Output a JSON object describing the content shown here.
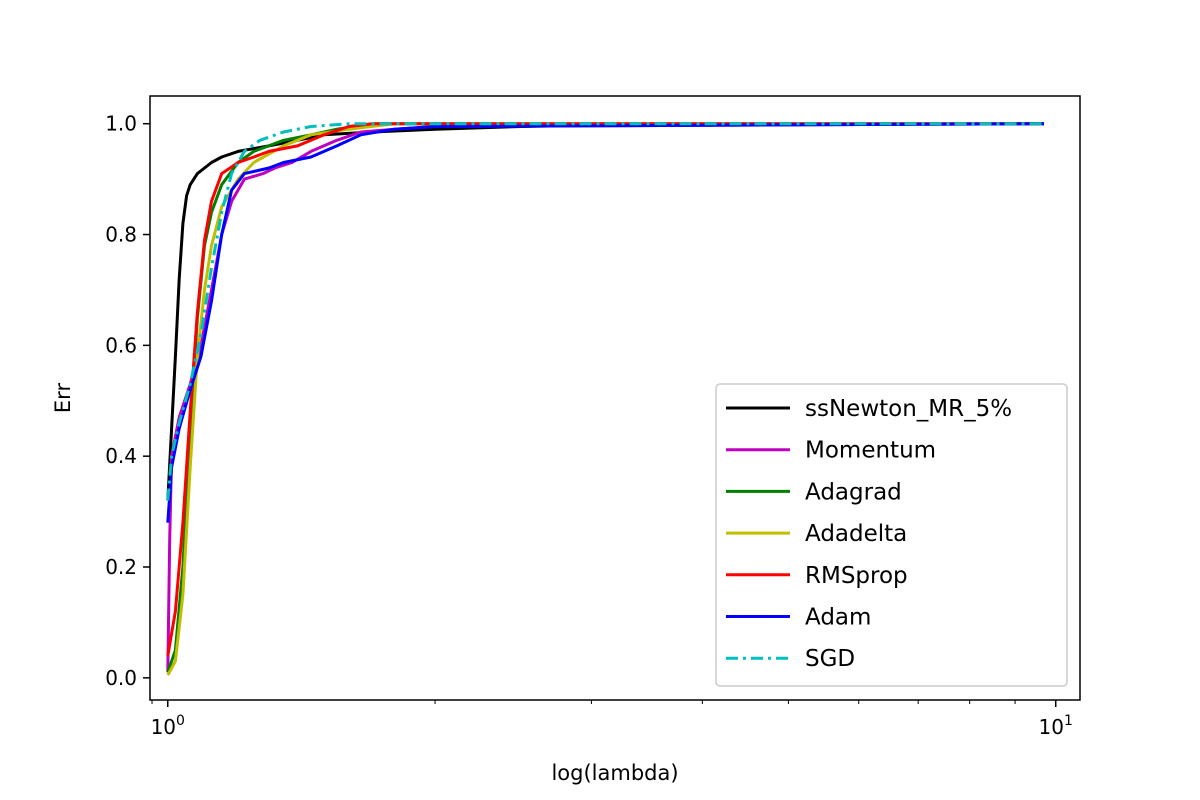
{
  "chart_data": {
    "type": "line",
    "title": "",
    "xlabel": "log(lambda)",
    "ylabel": "Err",
    "xscale": "log",
    "xlim": [
      0.955,
      10.65
    ],
    "ylim": [
      -0.04,
      1.05
    ],
    "grid": false,
    "legend_position": "lower-right",
    "y_ticks": [
      {
        "value": 0.0,
        "label": "0.0"
      },
      {
        "value": 0.2,
        "label": "0.2"
      },
      {
        "value": 0.4,
        "label": "0.4"
      },
      {
        "value": 0.6,
        "label": "0.6"
      },
      {
        "value": 0.8,
        "label": "0.8"
      },
      {
        "value": 1.0,
        "label": "1.0"
      }
    ],
    "x_major_ticks": [
      {
        "value": 1,
        "base": "10",
        "exp": "0"
      },
      {
        "value": 10,
        "base": "10",
        "exp": "1"
      }
    ],
    "x_minor_ticks": [
      2,
      3,
      4,
      5,
      6,
      7,
      8,
      9
    ],
    "series": [
      {
        "name": "ssNewton_MR_5%",
        "color": "#000000",
        "dash": "solid",
        "points": [
          [
            1.0,
            0.32
          ],
          [
            1.01,
            0.45
          ],
          [
            1.02,
            0.58
          ],
          [
            1.03,
            0.72
          ],
          [
            1.04,
            0.82
          ],
          [
            1.05,
            0.87
          ],
          [
            1.06,
            0.89
          ],
          [
            1.08,
            0.91
          ],
          [
            1.1,
            0.92
          ],
          [
            1.12,
            0.93
          ],
          [
            1.15,
            0.94
          ],
          [
            1.2,
            0.95
          ],
          [
            1.3,
            0.96
          ],
          [
            1.4,
            0.97
          ],
          [
            1.5,
            0.98
          ],
          [
            1.7,
            0.985
          ],
          [
            2.0,
            0.99
          ],
          [
            2.5,
            0.995
          ],
          [
            3.2,
            0.998
          ],
          [
            5.0,
            0.999
          ],
          [
            9.7,
            1.0
          ]
        ]
      },
      {
        "name": "Momentum",
        "color": "#bf00bf",
        "dash": "solid",
        "points": [
          [
            1.0,
            0.01
          ],
          [
            1.005,
            0.25
          ],
          [
            1.01,
            0.4
          ],
          [
            1.03,
            0.47
          ],
          [
            1.06,
            0.53
          ],
          [
            1.09,
            0.6
          ],
          [
            1.12,
            0.7
          ],
          [
            1.15,
            0.8
          ],
          [
            1.18,
            0.86
          ],
          [
            1.22,
            0.9
          ],
          [
            1.28,
            0.91
          ],
          [
            1.32,
            0.92
          ],
          [
            1.38,
            0.93
          ],
          [
            1.45,
            0.95
          ],
          [
            1.55,
            0.97
          ],
          [
            1.65,
            0.985
          ],
          [
            1.8,
            0.99
          ],
          [
            2.0,
            0.995
          ],
          [
            9.7,
            1.0
          ]
        ]
      },
      {
        "name": "Adagrad",
        "color": "#008000",
        "dash": "solid",
        "points": [
          [
            1.0,
            0.01
          ],
          [
            1.02,
            0.05
          ],
          [
            1.04,
            0.2
          ],
          [
            1.06,
            0.45
          ],
          [
            1.08,
            0.65
          ],
          [
            1.1,
            0.78
          ],
          [
            1.12,
            0.84
          ],
          [
            1.15,
            0.89
          ],
          [
            1.2,
            0.93
          ],
          [
            1.25,
            0.95
          ],
          [
            1.35,
            0.97
          ],
          [
            1.45,
            0.98
          ],
          [
            1.55,
            0.99
          ],
          [
            1.7,
            1.0
          ],
          [
            9.7,
            1.0
          ]
        ]
      },
      {
        "name": "Adadelta",
        "color": "#bfbf00",
        "dash": "solid",
        "points": [
          [
            1.0,
            0.005
          ],
          [
            1.02,
            0.03
          ],
          [
            1.04,
            0.15
          ],
          [
            1.06,
            0.38
          ],
          [
            1.08,
            0.58
          ],
          [
            1.1,
            0.7
          ],
          [
            1.12,
            0.78
          ],
          [
            1.15,
            0.85
          ],
          [
            1.2,
            0.9
          ],
          [
            1.25,
            0.93
          ],
          [
            1.35,
            0.96
          ],
          [
            1.45,
            0.98
          ],
          [
            1.6,
            0.99
          ],
          [
            1.8,
            1.0
          ],
          [
            9.7,
            1.0
          ]
        ]
      },
      {
        "name": "RMSprop",
        "color": "#ff0000",
        "dash": "solid",
        "points": [
          [
            1.0,
            0.04
          ],
          [
            1.02,
            0.12
          ],
          [
            1.04,
            0.28
          ],
          [
            1.06,
            0.48
          ],
          [
            1.08,
            0.66
          ],
          [
            1.1,
            0.79
          ],
          [
            1.12,
            0.86
          ],
          [
            1.15,
            0.91
          ],
          [
            1.2,
            0.93
          ],
          [
            1.25,
            0.94
          ],
          [
            1.3,
            0.95
          ],
          [
            1.4,
            0.96
          ],
          [
            1.5,
            0.98
          ],
          [
            1.6,
            0.995
          ],
          [
            1.7,
            1.0
          ],
          [
            9.7,
            1.0
          ]
        ]
      },
      {
        "name": "Adam",
        "color": "#0000ff",
        "dash": "solid",
        "points": [
          [
            1.0,
            0.28
          ],
          [
            1.01,
            0.38
          ],
          [
            1.03,
            0.45
          ],
          [
            1.06,
            0.52
          ],
          [
            1.09,
            0.58
          ],
          [
            1.12,
            0.68
          ],
          [
            1.15,
            0.8
          ],
          [
            1.18,
            0.88
          ],
          [
            1.22,
            0.91
          ],
          [
            1.3,
            0.92
          ],
          [
            1.35,
            0.93
          ],
          [
            1.45,
            0.94
          ],
          [
            1.55,
            0.96
          ],
          [
            1.65,
            0.98
          ],
          [
            1.8,
            0.99
          ],
          [
            2.0,
            0.995
          ],
          [
            9.7,
            1.0
          ]
        ]
      },
      {
        "name": "SGD",
        "color": "#00bfbf",
        "dash": "dashdot",
        "points": [
          [
            1.0,
            0.32
          ],
          [
            1.01,
            0.4
          ],
          [
            1.03,
            0.46
          ],
          [
            1.06,
            0.53
          ],
          [
            1.09,
            0.62
          ],
          [
            1.12,
            0.74
          ],
          [
            1.15,
            0.84
          ],
          [
            1.18,
            0.91
          ],
          [
            1.22,
            0.95
          ],
          [
            1.27,
            0.97
          ],
          [
            1.35,
            0.985
          ],
          [
            1.45,
            0.995
          ],
          [
            1.6,
            1.0
          ],
          [
            9.7,
            1.0
          ]
        ]
      }
    ]
  }
}
